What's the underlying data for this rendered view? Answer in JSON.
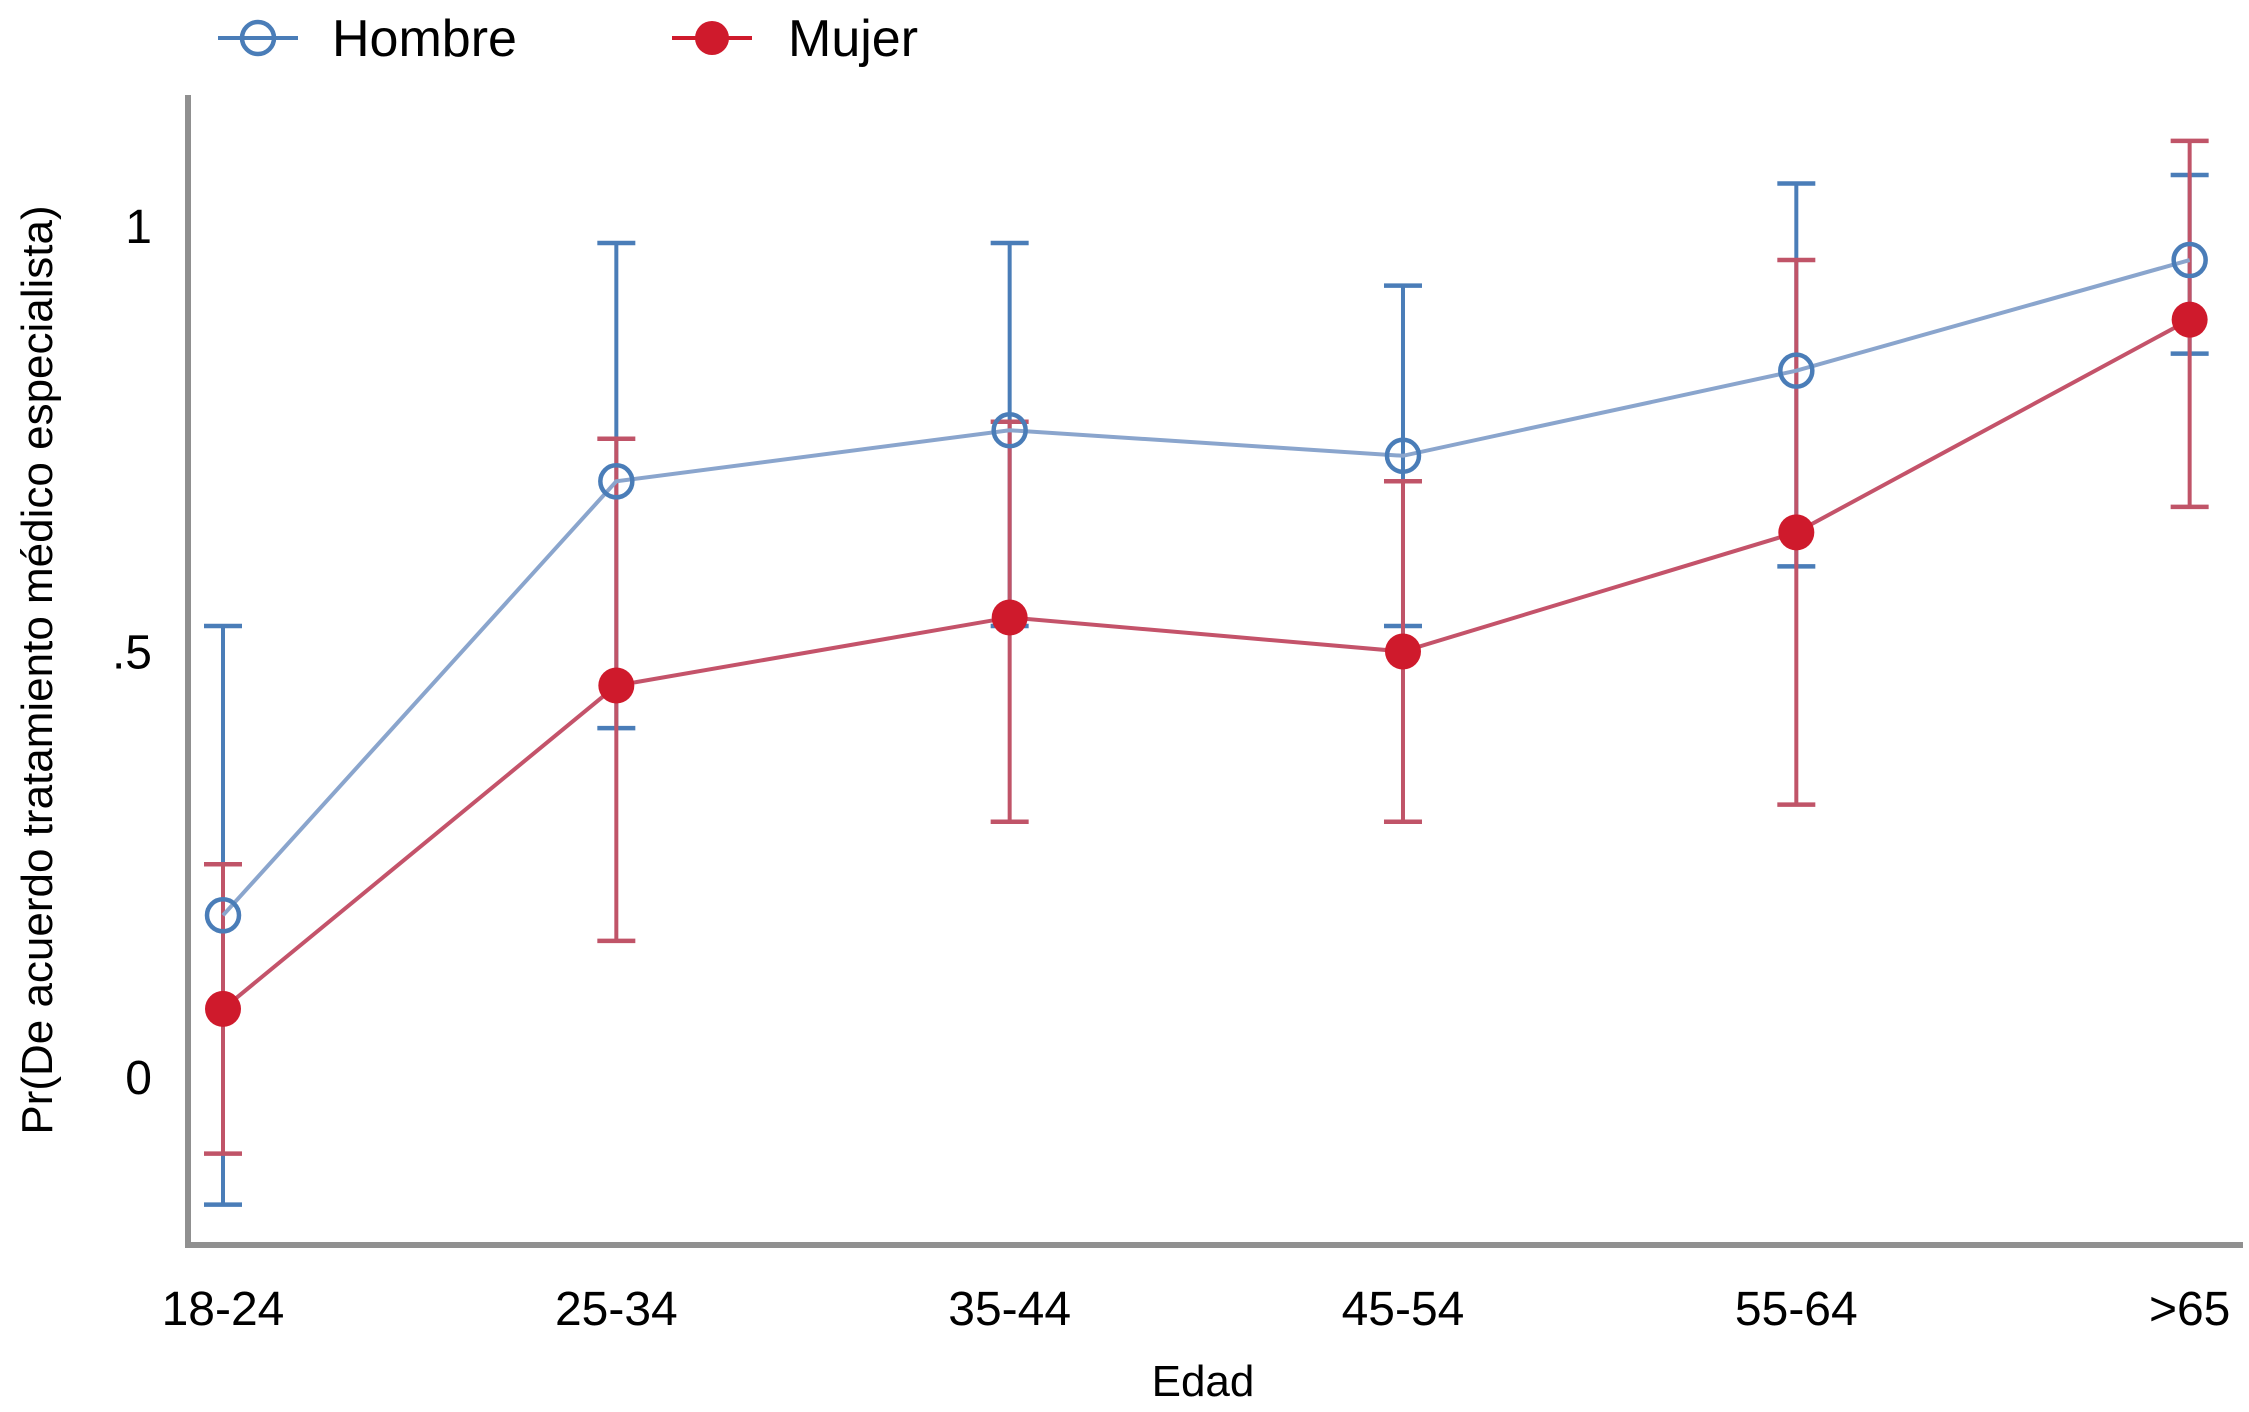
{
  "legend": {
    "items": [
      {
        "label": "Hombre",
        "marker": "open-circle"
      },
      {
        "label": "Mujer",
        "marker": "filled-circle"
      }
    ]
  },
  "y_axis": {
    "title": "Pr(De acuerdo tratamiento médico especialista)",
    "tick_labels": [
      "0",
      ".5",
      "1"
    ],
    "tick_values": [
      0,
      0.5,
      1
    ]
  },
  "x_axis": {
    "title": "Edad"
  },
  "colors": {
    "hombre_main": "#4a7db8",
    "hombre_line": "#8aa5cd",
    "mujer_main": "#cf1a2c",
    "mujer_err": "#c05468",
    "mujer_line": "#c4536a",
    "axis": "#909090",
    "text": "#000000"
  },
  "chart_data": {
    "type": "line",
    "title": "",
    "xlabel": "Edad",
    "ylabel": "Pr(De acuerdo tratamiento médico especialista)",
    "categories": [
      "18-24",
      "25-34",
      "35-44",
      "45-54",
      "55-64",
      ">65"
    ],
    "series": [
      {
        "name": "Hombre",
        "marker": "open-circle",
        "color": "#4a7db8",
        "values": [
          0.19,
          0.7,
          0.76,
          0.73,
          0.83,
          0.96
        ],
        "ci_low": [
          -0.15,
          0.41,
          0.53,
          0.53,
          0.6,
          0.85
        ],
        "ci_high": [
          0.53,
          0.98,
          0.98,
          0.93,
          1.05,
          1.06
        ]
      },
      {
        "name": "Mujer",
        "marker": "filled-circle",
        "color": "#cf1a2c",
        "values": [
          0.08,
          0.46,
          0.54,
          0.5,
          0.64,
          0.89
        ],
        "ci_low": [
          -0.09,
          0.16,
          0.3,
          0.3,
          0.32,
          0.67
        ],
        "ci_high": [
          0.25,
          0.75,
          0.77,
          0.7,
          0.96,
          1.1
        ]
      }
    ],
    "y_ticks": [
      0,
      0.5,
      1
    ],
    "ylim": [
      -0.2,
      1.155
    ],
    "grid": false,
    "error_bars": true,
    "legend_position": "top-left"
  }
}
